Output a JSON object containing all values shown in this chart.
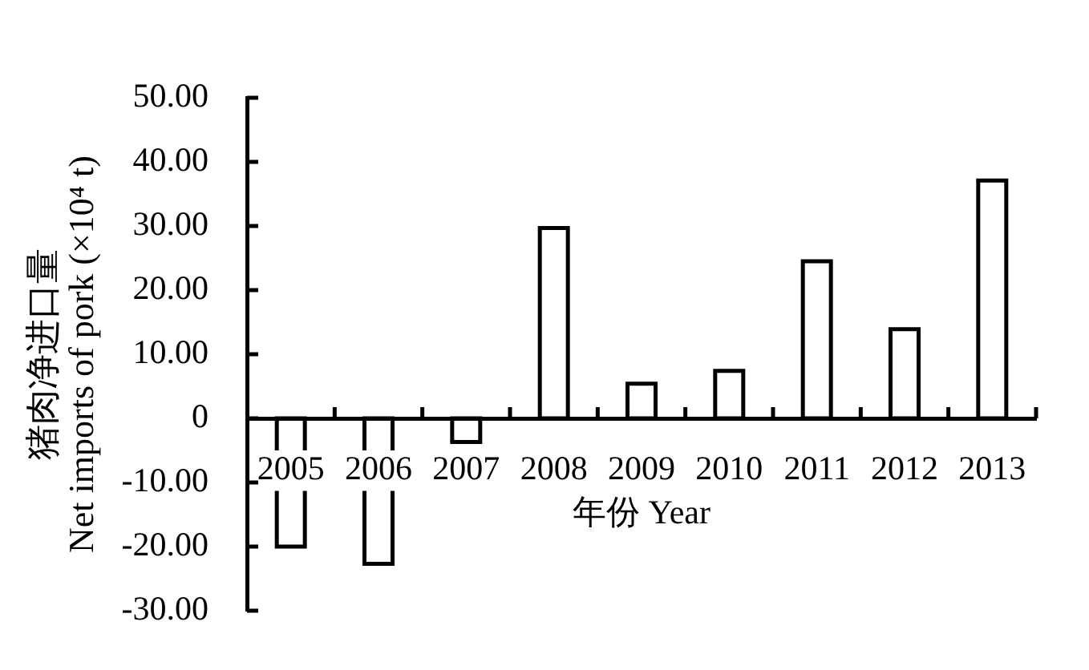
{
  "chart_data": {
    "type": "bar",
    "xlabel": "年份 Year",
    "ylabel": "猪肉净进口量\nNet imports of pork (×10⁴ t)",
    "categories": [
      "2005",
      "2006",
      "2007",
      "2008",
      "2009",
      "2010",
      "2011",
      "2012",
      "2013"
    ],
    "values": [
      -20.0,
      -22.7,
      -3.7,
      29.7,
      5.4,
      7.4,
      24.5,
      13.9,
      37.1
    ],
    "color": "#ffffff",
    "ylim": [
      -30,
      50
    ],
    "yticks": [
      {
        "value": -30,
        "label": "-30.00"
      },
      {
        "value": -20,
        "label": "-20.00"
      },
      {
        "value": -10,
        "label": "-10.00"
      },
      0,
      {
        "value": 10,
        "label": "10.00"
      },
      {
        "value": 20,
        "label": "20.00"
      },
      {
        "value": 30,
        "label": "30.00"
      },
      {
        "value": 40,
        "label": "40.00"
      },
      {
        "value": 50,
        "label": "50.00"
      }
    ]
  }
}
